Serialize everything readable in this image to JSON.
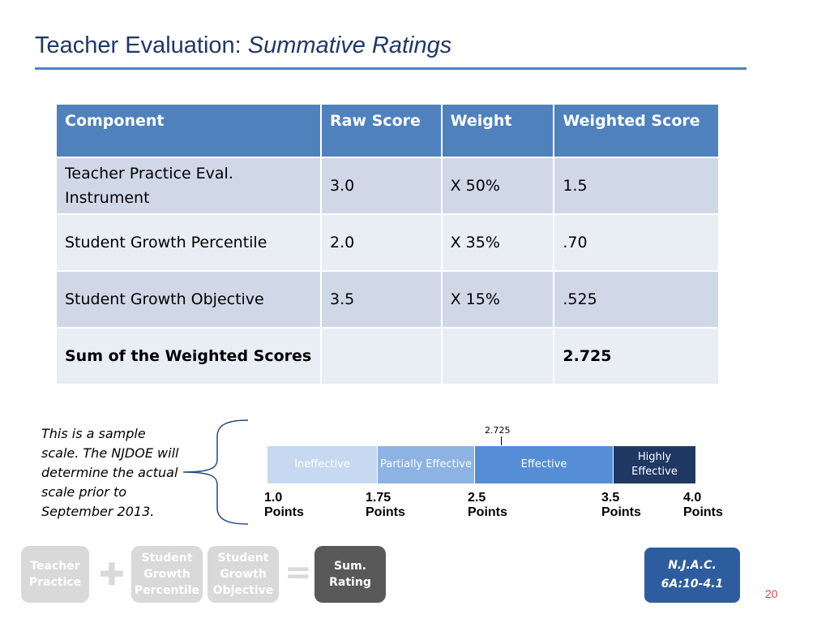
{
  "slide": {
    "title_plain": "Teacher Evaluation: ",
    "title_italic": "Summative Ratings",
    "page_number": "20"
  },
  "table": {
    "headers": [
      "Component",
      "Raw Score",
      "Weight",
      "Weighted Score"
    ],
    "rows": [
      [
        "Teacher Practice Eval. Instrument",
        "3.0",
        "X 50%",
        "1.5"
      ],
      [
        "Student Growth Percentile",
        "2.0",
        "X 35%",
        ".70"
      ],
      [
        "Student Growth Objective",
        "3.5",
        "X 15%",
        ".525"
      ],
      [
        "Sum of the Weighted Scores",
        "",
        "",
        "2.725"
      ]
    ]
  },
  "scale": {
    "note": "This is a sample scale.  The NJDOE will determine the actual scale prior to September 2013.",
    "marker": "2.725",
    "segments": [
      "Ineffective",
      "Partially Effective",
      "Effective",
      "Highly Effective"
    ],
    "points": [
      {
        "value": "1.0",
        "unit": "Points"
      },
      {
        "value": "1.75",
        "unit": "Points"
      },
      {
        "value": "2.5",
        "unit": "Points"
      },
      {
        "value": "3.5",
        "unit": "Points"
      },
      {
        "value": "4.0",
        "unit": "Points"
      }
    ],
    "colors": {
      "ineffective": "#c6d9f0",
      "partially": "#8db3e2",
      "effective": "#558ed5",
      "highly": "#1f3864"
    }
  },
  "formula": {
    "components": [
      "Teacher Practice",
      "Student Growth Percentile",
      "Student Growth Objective",
      "Sum. Rating"
    ],
    "plus": "✚",
    "equals": "="
  },
  "reference": {
    "line1": "N.J.A.C.",
    "line2": "6A:10-4.1"
  }
}
